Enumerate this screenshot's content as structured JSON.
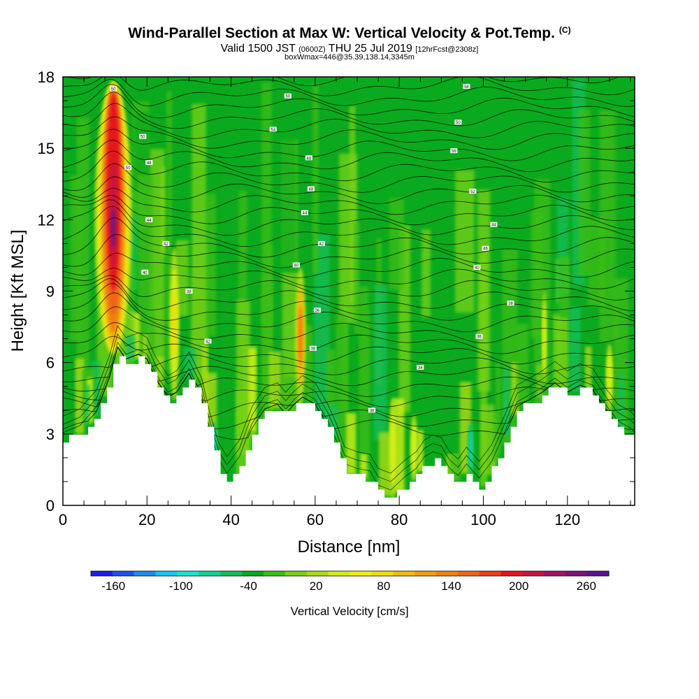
{
  "title": {
    "main": "Wind-Parallel Section at Max W: Vertical Velocity & Pot.Temp.",
    "copyright": "(C)",
    "valid_prefix": "Valid 1500 JST",
    "valid_utc": "(0600Z)",
    "valid_date": "THU 25 Jul 2019",
    "forecast": "[12hrFcst@2308z]",
    "box_info": "boxWmax=446@35.39,138.14,3345m"
  },
  "chart_data": {
    "type": "heatmap",
    "xlabel": "Distance [nm]",
    "ylabel": "Height [Kft MSL]",
    "xlim": [
      0,
      136
    ],
    "ylim": [
      0,
      18
    ],
    "x_ticks": [
      0,
      20,
      40,
      60,
      80,
      100,
      120
    ],
    "y_ticks": [
      0,
      3,
      6,
      9,
      12,
      15,
      18
    ],
    "colorbar": {
      "label": "Vertical Velocity [cm/s]",
      "range": [
        -180,
        280
      ],
      "tick_labels": [
        -160,
        -100,
        -40,
        20,
        80,
        140,
        200,
        260
      ],
      "colors": [
        "#1e1ef0",
        "#1e50f0",
        "#1e8cf0",
        "#14c8f0",
        "#14e6d2",
        "#14d296",
        "#14be5a",
        "#0aaa1e",
        "#3cbe14",
        "#78d214",
        "#aadc14",
        "#d2f014",
        "#f0f014",
        "#f0dc0a",
        "#f0be0a",
        "#f0a00a",
        "#f0820a",
        "#f0641e",
        "#f03c1e",
        "#e6141e",
        "#c8143c",
        "#a01464",
        "#781478",
        "#5a148c"
      ]
    },
    "terrain_kft": [
      [
        0,
        2.7
      ],
      [
        4,
        3.0
      ],
      [
        8,
        3.8
      ],
      [
        11,
        5.2
      ],
      [
        13,
        6.5
      ],
      [
        15,
        6.0
      ],
      [
        18,
        6.2
      ],
      [
        20,
        6.0
      ],
      [
        22,
        5.2
      ],
      [
        25,
        4.4
      ],
      [
        27,
        4.6
      ],
      [
        30,
        5.4
      ],
      [
        33,
        4.3
      ],
      [
        35,
        2.8
      ],
      [
        37,
        1.6
      ],
      [
        39,
        1.0
      ],
      [
        42,
        1.7
      ],
      [
        45,
        3.1
      ],
      [
        48,
        3.9
      ],
      [
        51,
        4.1
      ],
      [
        53,
        3.7
      ],
      [
        55,
        4.1
      ],
      [
        57,
        4.4
      ],
      [
        60,
        4.1
      ],
      [
        63,
        3.2
      ],
      [
        65,
        2.4
      ],
      [
        67,
        1.4
      ],
      [
        70,
        1.2
      ],
      [
        73,
        1.1
      ],
      [
        75,
        0.5
      ],
      [
        78,
        0.3
      ],
      [
        81,
        0.8
      ],
      [
        84,
        1.2
      ],
      [
        86,
        1.7
      ],
      [
        88,
        1.9
      ],
      [
        90,
        1.8
      ],
      [
        92,
        1.2
      ],
      [
        94,
        0.9
      ],
      [
        96,
        1.4
      ],
      [
        99,
        0.8
      ],
      [
        102,
        1.5
      ],
      [
        105,
        2.7
      ],
      [
        108,
        4.0
      ],
      [
        111,
        4.3
      ],
      [
        114,
        4.6
      ],
      [
        117,
        5.0
      ],
      [
        120,
        4.6
      ],
      [
        123,
        4.9
      ],
      [
        126,
        4.7
      ],
      [
        129,
        3.9
      ],
      [
        132,
        3.2
      ],
      [
        135,
        2.9
      ],
      [
        136,
        2.7
      ]
    ],
    "potential_temp_isentropes": {
      "units": "K (labels)",
      "labels": [
        {
          "x": 12,
          "y": 17.5,
          "text": "50"
        },
        {
          "x": 53.5,
          "y": 17.2,
          "text": "50"
        },
        {
          "x": 96,
          "y": 17.6,
          "text": "58"
        },
        {
          "x": 19,
          "y": 15.5,
          "text": "50"
        },
        {
          "x": 50,
          "y": 15.8,
          "text": "54"
        },
        {
          "x": 94,
          "y": 16.1,
          "text": "50"
        },
        {
          "x": 20.5,
          "y": 14.4,
          "text": "48"
        },
        {
          "x": 15.5,
          "y": 14.2,
          "text": "50"
        },
        {
          "x": 58.5,
          "y": 14.6,
          "text": "48"
        },
        {
          "x": 93,
          "y": 14.9,
          "text": "56"
        },
        {
          "x": 59,
          "y": 13.3,
          "text": "48"
        },
        {
          "x": 97.5,
          "y": 13.2,
          "text": "52"
        },
        {
          "x": 20.5,
          "y": 12.0,
          "text": "44"
        },
        {
          "x": 57.5,
          "y": 12.3,
          "text": "44"
        },
        {
          "x": 102.5,
          "y": 11.8,
          "text": "44"
        },
        {
          "x": 24.5,
          "y": 11.0,
          "text": "42"
        },
        {
          "x": 61.5,
          "y": 11.0,
          "text": "42"
        },
        {
          "x": 100.5,
          "y": 10.8,
          "text": "46"
        },
        {
          "x": 19.5,
          "y": 9.8,
          "text": "40"
        },
        {
          "x": 55.5,
          "y": 10.1,
          "text": "40"
        },
        {
          "x": 98.5,
          "y": 10.0,
          "text": "40"
        },
        {
          "x": 30,
          "y": 9.0,
          "text": "38"
        },
        {
          "x": 60.5,
          "y": 8.2,
          "text": "36"
        },
        {
          "x": 106.5,
          "y": 8.5,
          "text": "38"
        },
        {
          "x": 34.5,
          "y": 6.9,
          "text": "42"
        },
        {
          "x": 59.5,
          "y": 6.6,
          "text": "38"
        },
        {
          "x": 99,
          "y": 7.1,
          "text": "36"
        },
        {
          "x": 85,
          "y": 5.8,
          "text": "34"
        },
        {
          "x": 73.5,
          "y": 4.0,
          "text": "36"
        }
      ]
    },
    "updraft_core": {
      "x": 12,
      "y_range": [
        6.3,
        18
      ],
      "w_max": 446
    }
  }
}
